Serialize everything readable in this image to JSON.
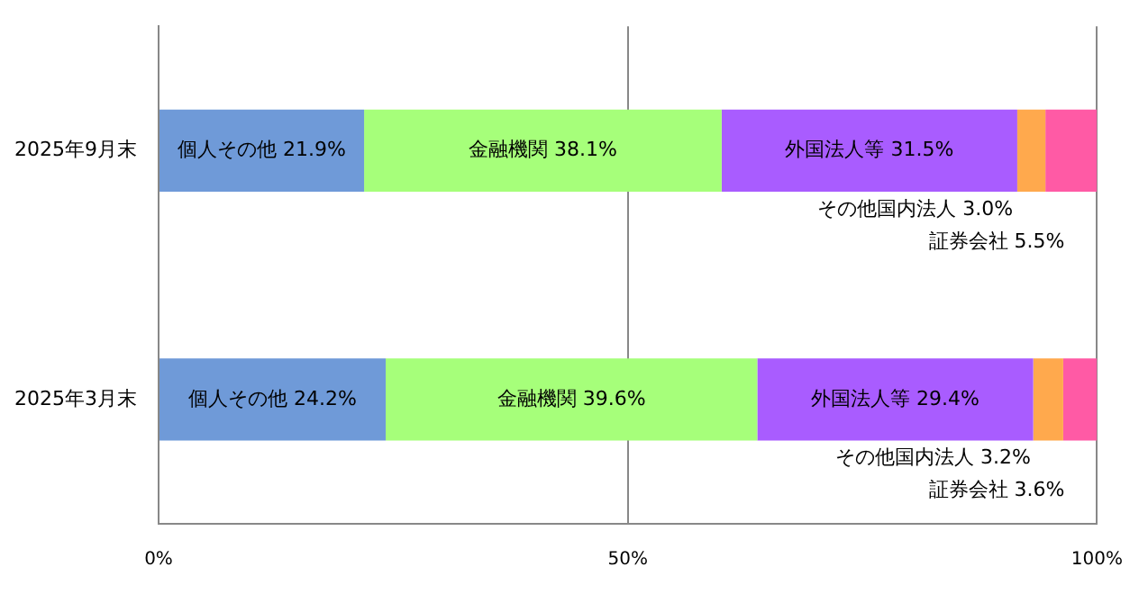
{
  "chart_data": {
    "type": "bar",
    "orientation": "horizontal",
    "stacked": true,
    "categories": [
      "2025年9月末",
      "2025年3月末"
    ],
    "series": [
      {
        "name": "個人その他",
        "color": "#6f9ad8",
        "values": [
          21.9,
          24.2
        ],
        "value_labels": [
          "21.9%",
          "24.2%"
        ]
      },
      {
        "name": "金融機関",
        "color": "#a6ff7a",
        "values": [
          38.1,
          39.6
        ],
        "value_labels": [
          "38.1%",
          "39.6%"
        ]
      },
      {
        "name": "外国法人等",
        "color": "#a95cff",
        "values": [
          31.5,
          29.4
        ],
        "value_labels": [
          "31.5%",
          "29.4%"
        ]
      },
      {
        "name": "その他国内法人",
        "color": "#ffa94d",
        "values": [
          3.0,
          3.2
        ],
        "value_labels": [
          "3.0%",
          "3.2%"
        ]
      },
      {
        "name": "証券会社",
        "color": "#ff5aa5",
        "values": [
          5.5,
          3.6
        ],
        "value_labels": [
          "5.5%",
          "3.6%"
        ]
      }
    ],
    "xlim": [
      0,
      100
    ],
    "xticks": [
      {
        "value": 0,
        "label": "0%"
      },
      {
        "value": 50,
        "label": "50%"
      },
      {
        "value": 100,
        "label": "100%"
      }
    ],
    "grid": "x",
    "legend": false
  }
}
